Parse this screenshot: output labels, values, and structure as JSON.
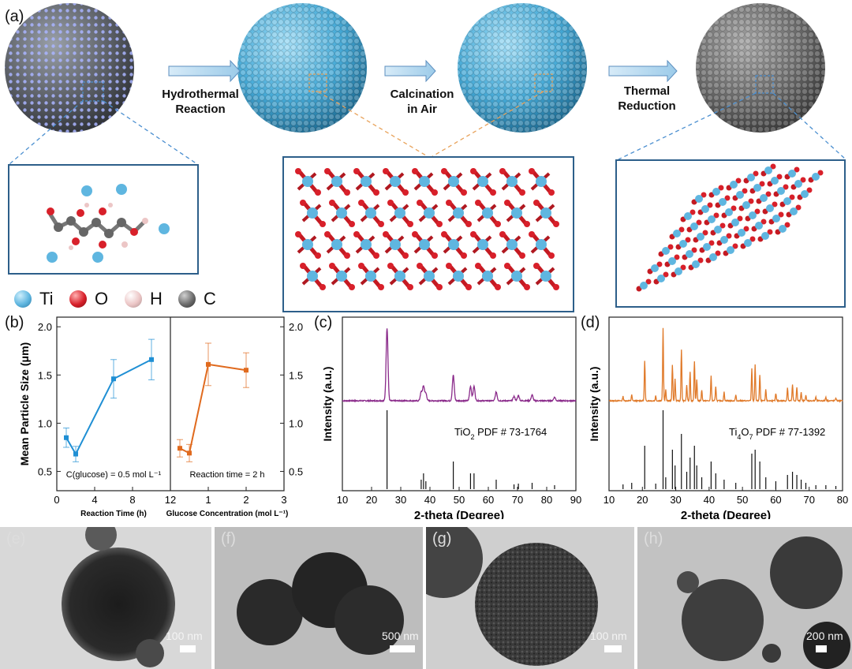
{
  "panels": {
    "a": "(a)",
    "b": "(b)",
    "c": "(c)",
    "d": "(d)",
    "e": "(e)",
    "f": "(f)",
    "g": "(g)",
    "h": "(h)"
  },
  "schematic": {
    "steps": [
      {
        "line1": "Hydrothermal",
        "line2": "Reaction"
      },
      {
        "line1": "Calcination",
        "line2": "in Air"
      },
      {
        "line1": "Thermal",
        "line2": "Reduction"
      }
    ],
    "legend": [
      {
        "symbol": "Ti",
        "color": "#5fb6e0"
      },
      {
        "symbol": "O",
        "color": "#d8202a"
      },
      {
        "symbol": "H",
        "color": "#ecc6c6"
      },
      {
        "symbol": "C",
        "color": "#6b6b6b"
      }
    ]
  },
  "colors": {
    "blue_series": "#1f8fd4",
    "orange_series": "#e06a1e",
    "purple_xrd": "#8a2a8a",
    "orange_xrd": "#e07a2a",
    "box_border": "#2d5f8a"
  },
  "chart_data": [
    {
      "type": "line",
      "panel": "b-left",
      "xlabel": "Reaction Time (h)",
      "ylabel": "Mean Particle Size (μm)",
      "xlim": [
        0,
        12
      ],
      "ylim": [
        0.3,
        2.1
      ],
      "xticks": [
        "0",
        "4",
        "8",
        "12"
      ],
      "yticks": [
        "0.5",
        "1.0",
        "1.5",
        "2.0"
      ],
      "annotation": "C(glucose) = 0.5 mol L⁻¹",
      "series": [
        {
          "x": [
            1,
            2,
            6,
            10
          ],
          "y": [
            0.85,
            0.68,
            1.46,
            1.66
          ],
          "err": [
            0.1,
            0.08,
            0.2,
            0.21
          ]
        }
      ]
    },
    {
      "type": "line",
      "panel": "b-right",
      "xlabel": "Glucose Concentration (mol L⁻¹)",
      "xlim": [
        0,
        3
      ],
      "ylim": [
        0.3,
        2.1
      ],
      "xticks": [
        "0",
        "1",
        "2",
        "3"
      ],
      "yticks": [
        "0.5",
        "1.0",
        "1.5",
        "2.0"
      ],
      "annotation": "Reaction time = 2 h",
      "series": [
        {
          "x": [
            0.25,
            0.5,
            1,
            2
          ],
          "y": [
            0.74,
            0.69,
            1.61,
            1.55
          ],
          "err": [
            0.09,
            0.09,
            0.22,
            0.18
          ]
        }
      ]
    },
    {
      "type": "line",
      "panel": "c",
      "xlabel": "2-theta (Degree)",
      "ylabel": "Intensity (a.u.)",
      "xlim": [
        10,
        90
      ],
      "xticks": [
        "10",
        "20",
        "30",
        "40",
        "50",
        "60",
        "70",
        "80",
        "90"
      ],
      "reference": "TiO2 PDF # 73-1764",
      "peaks": [
        [
          25.3,
          1.0
        ],
        [
          37.0,
          0.12
        ],
        [
          37.8,
          0.2
        ],
        [
          38.6,
          0.1
        ],
        [
          48.0,
          0.35
        ],
        [
          53.9,
          0.2
        ],
        [
          55.1,
          0.2
        ],
        [
          62.7,
          0.12
        ],
        [
          68.8,
          0.06
        ],
        [
          70.3,
          0.07
        ],
        [
          75.0,
          0.08
        ],
        [
          82.7,
          0.05
        ]
      ]
    },
    {
      "type": "line",
      "panel": "d",
      "xlabel": "2-theta (Degree)",
      "ylabel": "Intensity (a.u.)",
      "xlim": [
        10,
        80
      ],
      "xticks": [
        "10",
        "20",
        "30",
        "40",
        "50",
        "60",
        "70",
        "80"
      ],
      "reference": "Ti4O7 PDF # 77-1392",
      "peaks": [
        [
          14.2,
          0.06
        ],
        [
          16.8,
          0.08
        ],
        [
          20.7,
          0.55
        ],
        [
          24.0,
          0.07
        ],
        [
          26.2,
          1.0
        ],
        [
          27.0,
          0.15
        ],
        [
          29.0,
          0.5
        ],
        [
          29.8,
          0.3
        ],
        [
          31.7,
          0.7
        ],
        [
          33.3,
          0.22
        ],
        [
          34.3,
          0.4
        ],
        [
          35.6,
          0.55
        ],
        [
          36.3,
          0.3
        ],
        [
          37.8,
          0.15
        ],
        [
          40.6,
          0.35
        ],
        [
          42.0,
          0.2
        ],
        [
          44.5,
          0.12
        ],
        [
          48.0,
          0.08
        ],
        [
          52.8,
          0.45
        ],
        [
          53.8,
          0.5
        ],
        [
          55.2,
          0.35
        ],
        [
          57.0,
          0.15
        ],
        [
          60.0,
          0.1
        ],
        [
          63.5,
          0.18
        ],
        [
          65.0,
          0.22
        ],
        [
          66.3,
          0.18
        ],
        [
          67.6,
          0.12
        ],
        [
          69.0,
          0.08
        ],
        [
          72.0,
          0.05
        ],
        [
          75.0,
          0.05
        ],
        [
          78.0,
          0.04
        ]
      ]
    }
  ],
  "tem": [
    {
      "scale": "100 nm"
    },
    {
      "scale": "500 nm"
    },
    {
      "scale": "100 nm"
    },
    {
      "scale": "200 nm"
    }
  ]
}
